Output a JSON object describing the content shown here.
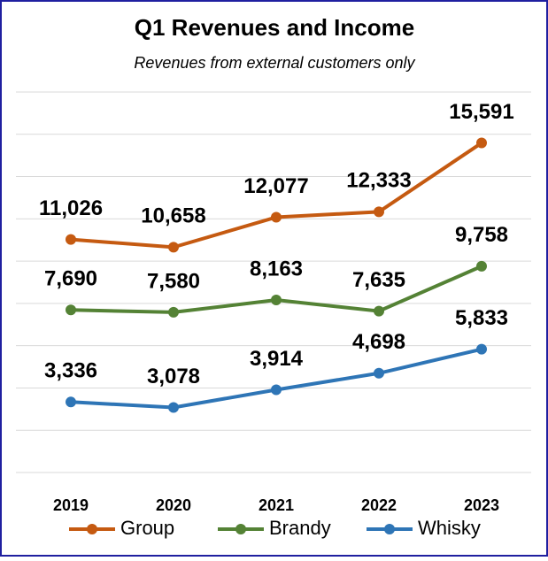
{
  "chart_data": {
    "type": "line",
    "title": "Q1 Revenues and Income",
    "subtitle": "Revenues from external customers only",
    "categories": [
      "2019",
      "2020",
      "2021",
      "2022",
      "2023"
    ],
    "series": [
      {
        "name": "Group",
        "color": "#c55a11",
        "values": [
          11026,
          10658,
          12077,
          12333,
          15591
        ],
        "value_labels": [
          "11,026",
          "10,658",
          "12,077",
          "12,333",
          "15,591"
        ]
      },
      {
        "name": "Brandy",
        "color": "#548235",
        "values": [
          7690,
          7580,
          8163,
          7635,
          9758
        ],
        "value_labels": [
          "7,690",
          "7,580",
          "8,163",
          "7,635",
          "9,758"
        ]
      },
      {
        "name": "Whisky",
        "color": "#2e75b6",
        "values": [
          3336,
          3078,
          3914,
          4698,
          5833
        ],
        "value_labels": [
          "3,336",
          "3,078",
          "3,914",
          "4,698",
          "5,833"
        ]
      }
    ],
    "ylim": [
      0,
      18000
    ],
    "yticks": [
      0,
      2000,
      4000,
      6000,
      8000,
      10000,
      12000,
      14000,
      16000,
      18000
    ],
    "grid": true,
    "legend": "bottom"
  }
}
